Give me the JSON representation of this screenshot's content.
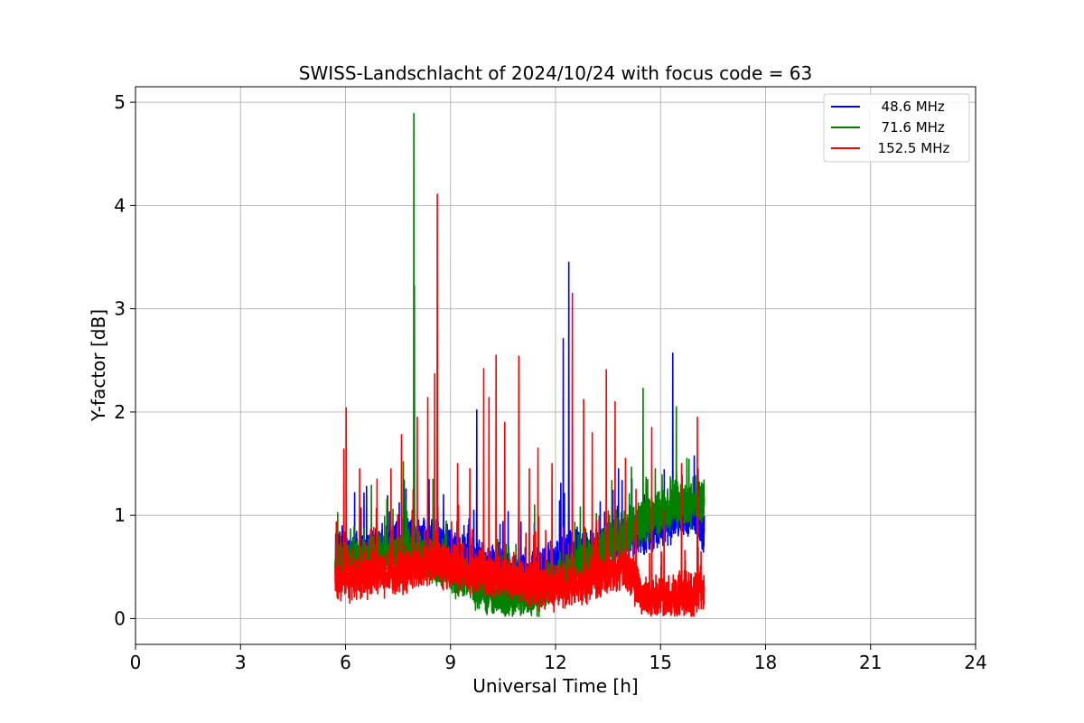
{
  "chart_data": {
    "type": "line",
    "title": "SWISS-Landschlacht of 2024/10/24 with focus code = 63",
    "xlabel": "Universal Time [h]",
    "ylabel": "Y-factor [dB]",
    "xlim": [
      0,
      24
    ],
    "ylim": [
      -0.25,
      5.15
    ],
    "xticks": [
      0,
      3,
      6,
      9,
      12,
      15,
      18,
      21,
      24
    ],
    "xtick_labels": [
      "0",
      "3",
      "6",
      "9",
      "12",
      "15",
      "18",
      "21",
      "24"
    ],
    "yticks": [
      0,
      1,
      2,
      3,
      4,
      5
    ],
    "ytick_labels": [
      "0",
      "1",
      "2",
      "3",
      "4",
      "5"
    ],
    "grid": true,
    "legend_position": "top-right",
    "time_range": [
      5.7,
      16.25
    ],
    "series": [
      {
        "name": "48.6 MHz",
        "legend_label": "  48.6 MHz",
        "color": "#0000ff",
        "base_level": [
          [
            5.7,
            0.6
          ],
          [
            6.5,
            0.6
          ],
          [
            7.5,
            0.75
          ],
          [
            8.5,
            0.75
          ],
          [
            9.5,
            0.6
          ],
          [
            11.0,
            0.4
          ],
          [
            12.0,
            0.55
          ],
          [
            13.0,
            0.65
          ],
          [
            14.0,
            0.75
          ],
          [
            15.0,
            0.9
          ],
          [
            16.0,
            1.05
          ],
          [
            16.25,
            0.8
          ]
        ],
        "spikes": [
          [
            5.72,
            0.82
          ],
          [
            6.6,
            1.28
          ],
          [
            7.2,
            1.19
          ],
          [
            7.9,
            0.98
          ],
          [
            9.75,
            2.02
          ],
          [
            10.95,
            1.57
          ],
          [
            12.15,
            1.31
          ],
          [
            12.22,
            2.71
          ],
          [
            12.38,
            3.45
          ],
          [
            13.8,
            1.45
          ],
          [
            15.35,
            2.57
          ],
          [
            16.2,
            1.2
          ]
        ]
      },
      {
        "name": "71.6 MHz",
        "legend_label": "  71.6 MHz",
        "color": "#008000",
        "base_level": [
          [
            5.7,
            0.55
          ],
          [
            6.5,
            0.6
          ],
          [
            7.5,
            0.65
          ],
          [
            8.5,
            0.55
          ],
          [
            9.5,
            0.35
          ],
          [
            10.5,
            0.2
          ],
          [
            11.5,
            0.25
          ],
          [
            12.5,
            0.45
          ],
          [
            13.5,
            0.7
          ],
          [
            14.5,
            0.95
          ],
          [
            15.5,
            1.1
          ],
          [
            16.25,
            1.1
          ]
        ],
        "spikes": [
          [
            5.72,
            0.75
          ],
          [
            7.65,
            1.52
          ],
          [
            7.95,
            4.89
          ],
          [
            7.97,
            3.22
          ],
          [
            8.5,
            1.35
          ],
          [
            11.4,
            1.1
          ],
          [
            14.5,
            2.23
          ],
          [
            14.85,
            1.45
          ],
          [
            15.45,
            2.05
          ],
          [
            15.75,
            1.55
          ],
          [
            16.2,
            1.3
          ]
        ]
      },
      {
        "name": "152.5 MHz",
        "legend_label": "  152.5 MHz",
        "color": "#ff0000",
        "base_level": [
          [
            5.7,
            0.35
          ],
          [
            6.5,
            0.4
          ],
          [
            7.5,
            0.45
          ],
          [
            8.5,
            0.55
          ],
          [
            9.5,
            0.45
          ],
          [
            10.5,
            0.4
          ],
          [
            11.5,
            0.3
          ],
          [
            12.5,
            0.3
          ],
          [
            13.5,
            0.45
          ],
          [
            14.0,
            0.5
          ],
          [
            14.5,
            0.2
          ],
          [
            15.5,
            0.2
          ],
          [
            16.25,
            0.25
          ]
        ],
        "spikes": [
          [
            5.95,
            1.64
          ],
          [
            6.02,
            2.04
          ],
          [
            6.4,
            1.45
          ],
          [
            6.9,
            1.35
          ],
          [
            7.3,
            1.45
          ],
          [
            7.6,
            1.78
          ],
          [
            7.93,
            1.25
          ],
          [
            8.05,
            1.95
          ],
          [
            8.35,
            2.14
          ],
          [
            8.55,
            2.37
          ],
          [
            8.62,
            4.11
          ],
          [
            9.2,
            1.5
          ],
          [
            9.55,
            1.45
          ],
          [
            9.95,
            2.42
          ],
          [
            10.1,
            2.14
          ],
          [
            10.3,
            2.55
          ],
          [
            10.55,
            1.9
          ],
          [
            10.95,
            2.54
          ],
          [
            11.25,
            1.45
          ],
          [
            11.5,
            1.65
          ],
          [
            11.9,
            1.5
          ],
          [
            12.48,
            3.15
          ],
          [
            12.8,
            2.12
          ],
          [
            13.05,
            1.8
          ],
          [
            13.45,
            2.41
          ],
          [
            13.7,
            2.1
          ],
          [
            14.0,
            1.55
          ],
          [
            14.3,
            1.25
          ],
          [
            14.75,
            1.85
          ],
          [
            15.1,
            1.05
          ],
          [
            15.6,
            1.5
          ],
          [
            16.05,
            1.95
          ]
        ]
      }
    ]
  }
}
